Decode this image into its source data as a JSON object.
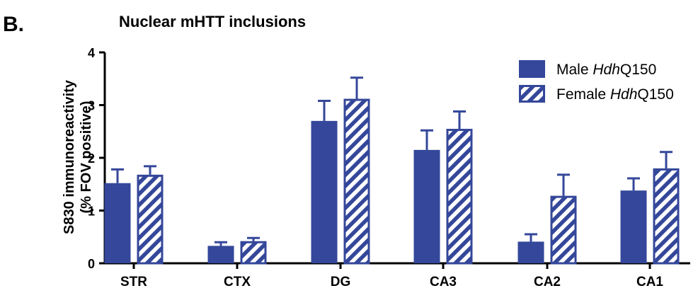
{
  "panel_label": "B.",
  "chart_data": {
    "type": "bar",
    "title": "Nuclear mHTT inclusions",
    "ylabel_line1": "S830 immunoreactivity",
    "ylabel_line2": "(% FOV positive)",
    "xlabel": "",
    "ylim": [
      0,
      4
    ],
    "yticks": [
      "0",
      "1",
      "2",
      "3",
      "4"
    ],
    "categories": [
      "STR",
      "CTX",
      "DG",
      "CA3",
      "CA2",
      "CA1"
    ],
    "legend_position": "top-right",
    "series": [
      {
        "legend_prefix": "Male ",
        "legend_italic": "Hdh",
        "legend_suffix": "Q150",
        "style": "solid",
        "values": [
          1.52,
          0.33,
          2.7,
          2.15,
          0.41,
          1.38
        ],
        "errors": [
          0.26,
          0.07,
          0.38,
          0.37,
          0.14,
          0.23
        ]
      },
      {
        "legend_prefix": "Female ",
        "legend_italic": "Hdh",
        "legend_suffix": "Q150",
        "style": "hatched",
        "values": [
          1.68,
          0.42,
          3.12,
          2.55,
          1.28,
          1.8
        ],
        "errors": [
          0.16,
          0.06,
          0.4,
          0.33,
          0.4,
          0.31
        ]
      }
    ],
    "colors": {
      "bar": "#34479a",
      "axis": "#000000"
    }
  }
}
